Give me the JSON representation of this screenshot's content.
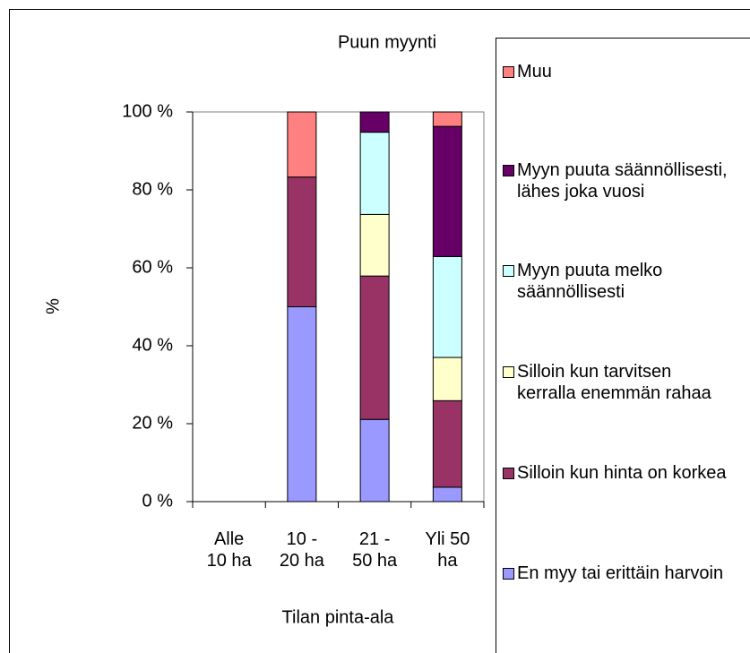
{
  "chart_data": {
    "type": "stacked_bar",
    "title": "Puun myynti",
    "x_label": "Tilan pinta-ala",
    "y_label": "%",
    "categories": [
      "Alle 10 ha",
      "10 - 20 ha",
      "21 - 50 ha",
      "Yli 50 ha"
    ],
    "series": [
      {
        "name": "En myy tai erittäin harvoin",
        "color": "#9999ff",
        "values": [
          0,
          50,
          21.1,
          3.7
        ]
      },
      {
        "name": "Silloin kun hinta on korkea",
        "color": "#993366",
        "values": [
          0,
          33.3,
          36.8,
          22.2
        ]
      },
      {
        "name": "Silloin kun tarvitsen kerralla enemmän rahaa",
        "color": "#ffffcc",
        "values": [
          0,
          0,
          15.8,
          11.1
        ]
      },
      {
        "name": "Myyn puuta melko säännöllisesti",
        "color": "#ccffff",
        "values": [
          0,
          0,
          21.1,
          25.9
        ]
      },
      {
        "name": "Myyn puuta säännöllisesti, lähes joka vuosi",
        "color": "#660066",
        "values": [
          0,
          0,
          5.2,
          33.4
        ]
      },
      {
        "name": "Muu",
        "color": "#ff8080",
        "values": [
          0,
          16.7,
          0,
          3.7
        ]
      }
    ],
    "ylim": [
      0,
      100
    ],
    "yticks": [
      {
        "value": 0,
        "label": "0 %"
      },
      {
        "value": 20,
        "label": "20 %"
      },
      {
        "value": 40,
        "label": "40 %"
      },
      {
        "value": 60,
        "label": "60 %"
      },
      {
        "value": 80,
        "label": "80 %"
      },
      {
        "value": 100,
        "label": "100 %"
      }
    ],
    "legend": "right"
  }
}
